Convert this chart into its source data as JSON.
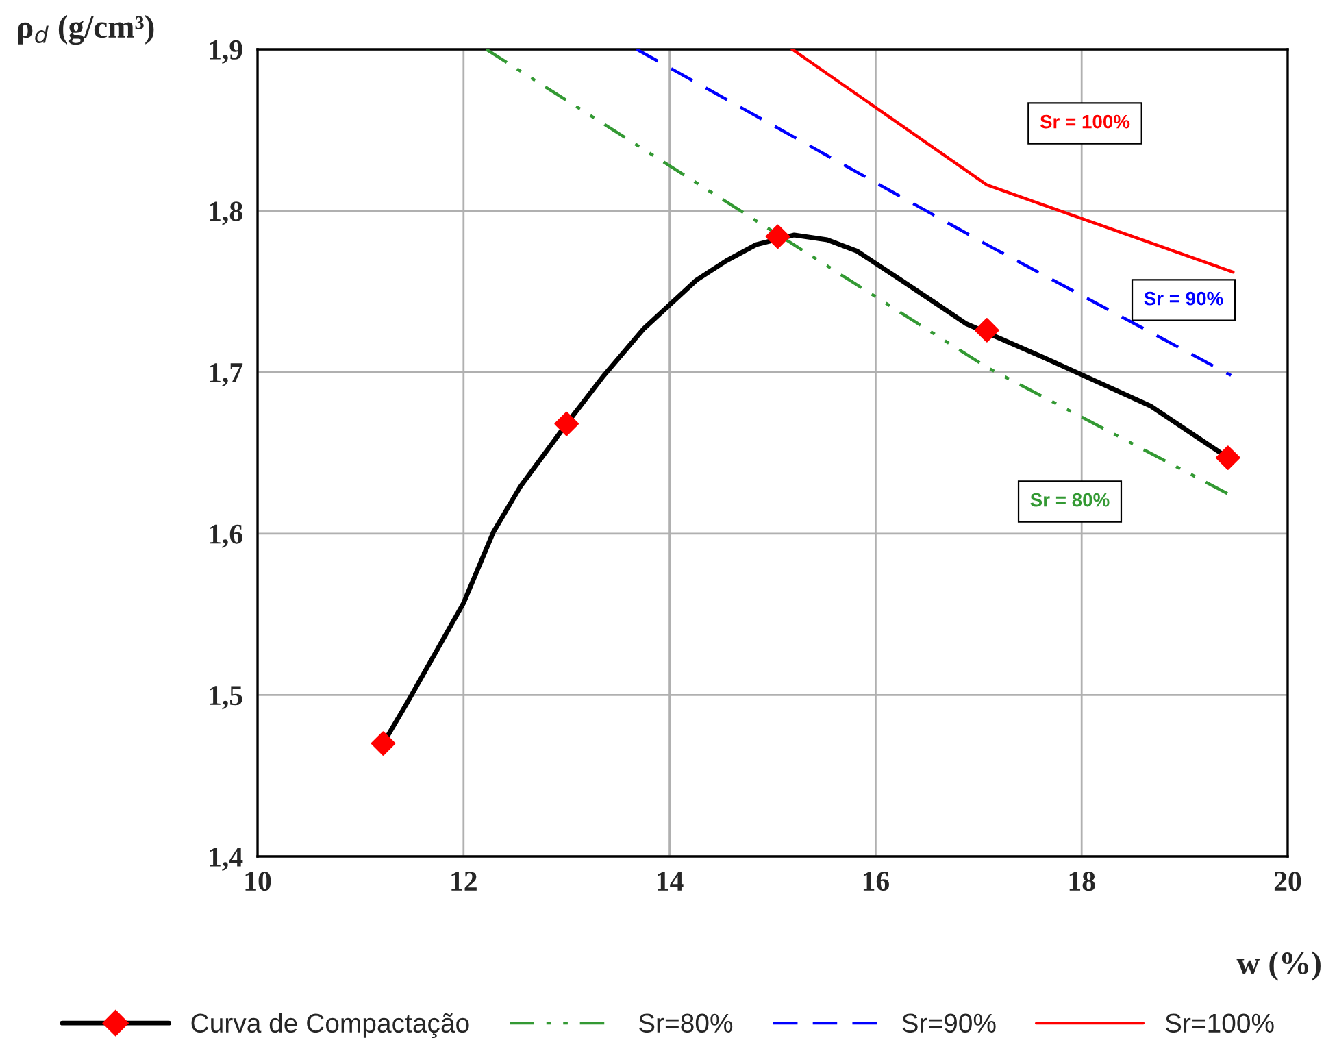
{
  "chart_data": {
    "type": "line",
    "xlabel": "w (%)",
    "ylabel": "ρ$_{d}$ (g/cm³)",
    "xlim": [
      10,
      20
    ],
    "xticks": [
      10,
      12,
      14,
      16,
      18,
      20
    ],
    "ylim": [
      1.4,
      1.9
    ],
    "yticks": [
      {
        "value": 1.4,
        "label": "1,4"
      },
      {
        "value": 1.5,
        "label": "1,5"
      },
      {
        "value": 1.6,
        "label": "1,6"
      },
      {
        "value": 1.7,
        "label": "1,7"
      },
      {
        "value": 1.8,
        "label": "1,8"
      },
      {
        "value": 1.9,
        "label": "1,9"
      }
    ],
    "grid": true,
    "legend": "bottom",
    "series": [
      {
        "name": "Curva de Compactação",
        "color": "#000000",
        "line_style": "solid",
        "marker": "none",
        "x": [
          11.22,
          11.46,
          12.0,
          12.29,
          12.55,
          13.0,
          13.35,
          13.75,
          14.26,
          14.55,
          14.84,
          15.21,
          15.53,
          15.82,
          16.2,
          16.6,
          16.88,
          17.67,
          18.67,
          19.42
        ],
        "values": [
          1.47,
          1.496,
          1.557,
          1.601,
          1.629,
          1.668,
          1.697,
          1.727,
          1.757,
          1.769,
          1.779,
          1.785,
          1.782,
          1.775,
          1.759,
          1.742,
          1.73,
          1.708,
          1.679,
          1.647
        ]
      },
      {
        "type": "scatter",
        "color": "#ff0000",
        "marker": "diamond",
        "x": [
          11.22,
          13.0,
          15.05,
          17.08,
          19.42
        ],
        "values": [
          1.47,
          1.668,
          1.784,
          1.726,
          1.647
        ]
      },
      {
        "name": "Sr=80%",
        "color": "#339933",
        "line_style": "dashdot",
        "marker": "none",
        "x": [
          12.22,
          17.08,
          19.47
        ],
        "values": [
          1.9,
          1.703,
          1.623
        ]
      },
      {
        "name": "Sr=90%",
        "color": "#0000ff",
        "line_style": "dashed",
        "marker": "none",
        "x": [
          13.68,
          17.08,
          19.45
        ],
        "values": [
          1.9,
          1.779,
          1.698
        ]
      },
      {
        "name": "Sr=100%",
        "color": "#ff0000",
        "line_style": "solid",
        "marker": "none",
        "x": [
          15.19,
          17.08,
          19.47
        ],
        "values": [
          1.9,
          1.816,
          1.762
        ]
      }
    ],
    "annotations": [
      "Sr = 100%",
      "Sr = 90%",
      "Sr = 80%"
    ]
  }
}
